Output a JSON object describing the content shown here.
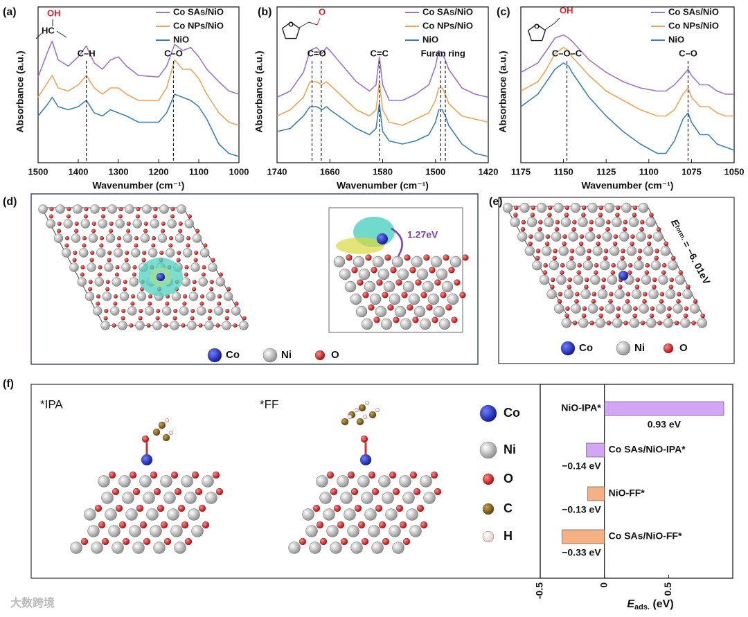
{
  "chart_data": [
    {
      "type": "line",
      "xlabel": "Wavenumber (cm⁻¹)",
      "ylabel": "Absorbance (a.u.)",
      "xlim": [
        1500,
        1000
      ],
      "xticks": [
        1500,
        1400,
        1300,
        1200,
        1100,
        1000
      ],
      "ylim": [
        0,
        1
      ],
      "molecule": [
        "OH",
        "HC"
      ],
      "x": [
        1500,
        1475,
        1465,
        1450,
        1425,
        1400,
        1380,
        1360,
        1340,
        1320,
        1300,
        1280,
        1250,
        1200,
        1180,
        1160,
        1140,
        1120,
        1100,
        1080,
        1050,
        1025,
        1000
      ],
      "series": [
        {
          "name": "Co SAs/NiO",
          "color": "#9b72cf",
          "values": [
            0.55,
            0.72,
            0.78,
            0.66,
            0.62,
            0.68,
            0.75,
            0.64,
            0.6,
            0.66,
            0.68,
            0.62,
            0.56,
            0.55,
            0.62,
            0.76,
            0.72,
            0.74,
            0.68,
            0.6,
            0.52,
            0.46,
            0.44
          ]
        },
        {
          "name": "Co NPs/NiO",
          "color": "#f0a354",
          "values": [
            0.42,
            0.52,
            0.56,
            0.48,
            0.46,
            0.5,
            0.56,
            0.48,
            0.44,
            0.48,
            0.48,
            0.44,
            0.4,
            0.4,
            0.48,
            0.66,
            0.6,
            0.6,
            0.54,
            0.44,
            0.32,
            0.26,
            0.24
          ]
        },
        {
          "name": "NiO",
          "color": "#3b7fb4",
          "values": [
            0.3,
            0.38,
            0.42,
            0.36,
            0.34,
            0.36,
            0.4,
            0.32,
            0.3,
            0.34,
            0.32,
            0.3,
            0.26,
            0.26,
            0.32,
            0.44,
            0.42,
            0.4,
            0.36,
            0.28,
            0.12,
            0.06,
            0.04
          ]
        }
      ],
      "annotations": [
        {
          "label": "C–H",
          "x": [
            1380
          ]
        },
        {
          "label": "C–O",
          "x": [
            1163
          ]
        }
      ]
    },
    {
      "type": "line",
      "xlabel": "Wavenumber (cm⁻¹)",
      "ylabel": "Absorbance (a.u.)",
      "xlim": [
        1740,
        1420
      ],
      "xticks": [
        1740,
        1660,
        1580,
        1500,
        1420
      ],
      "ylim": [
        0,
        1
      ],
      "molecule": [
        "O",
        "O"
      ],
      "x": [
        1740,
        1720,
        1700,
        1690,
        1680,
        1672,
        1665,
        1660,
        1640,
        1620,
        1600,
        1590,
        1585,
        1580,
        1570,
        1550,
        1530,
        1510,
        1500,
        1495,
        1490,
        1485,
        1480,
        1460,
        1440,
        1420
      ],
      "series": [
        {
          "name": "Co SAs/NiO",
          "color": "#9b72cf",
          "values": [
            0.42,
            0.46,
            0.58,
            0.72,
            0.74,
            0.7,
            0.74,
            0.72,
            0.62,
            0.52,
            0.46,
            0.5,
            0.68,
            0.5,
            0.4,
            0.4,
            0.44,
            0.5,
            0.62,
            0.72,
            0.7,
            0.66,
            0.6,
            0.48,
            0.44,
            0.42
          ]
        },
        {
          "name": "Co NPs/NiO",
          "color": "#f0a354",
          "values": [
            0.3,
            0.34,
            0.42,
            0.52,
            0.52,
            0.5,
            0.52,
            0.5,
            0.42,
            0.34,
            0.3,
            0.34,
            0.52,
            0.34,
            0.26,
            0.24,
            0.28,
            0.32,
            0.4,
            0.48,
            0.48,
            0.44,
            0.38,
            0.3,
            0.28,
            0.26
          ]
        },
        {
          "name": "NiO",
          "color": "#3b7fb4",
          "values": [
            0.2,
            0.22,
            0.3,
            0.36,
            0.36,
            0.34,
            0.36,
            0.34,
            0.28,
            0.22,
            0.18,
            0.22,
            0.38,
            0.2,
            0.14,
            0.12,
            0.14,
            0.18,
            0.26,
            0.34,
            0.34,
            0.3,
            0.24,
            0.12,
            0.06,
            0.04
          ]
        }
      ],
      "annotations": [
        {
          "label": "C=O",
          "x": [
            1687,
            1673
          ]
        },
        {
          "label": "C=C",
          "x": [
            1585
          ]
        },
        {
          "label": "Furan ring",
          "x": [
            1492,
            1485
          ]
        }
      ]
    },
    {
      "type": "line",
      "xlabel": "Wavenumber (cm⁻¹)",
      "ylabel": "Absorbance (a.u.)",
      "xlim": [
        1175,
        1050
      ],
      "xticks": [
        1175,
        1150,
        1125,
        1100,
        1075,
        1050
      ],
      "ylim": [
        0,
        1
      ],
      "molecule": [
        "O",
        "OH"
      ],
      "x": [
        1175,
        1165,
        1160,
        1155,
        1150,
        1147,
        1145,
        1140,
        1135,
        1125,
        1115,
        1105,
        1095,
        1090,
        1085,
        1080,
        1077,
        1075,
        1070,
        1065,
        1060,
        1055,
        1050
      ],
      "series": [
        {
          "name": "Co SAs/NiO",
          "color": "#9b72cf",
          "values": [
            0.58,
            0.64,
            0.72,
            0.8,
            0.82,
            0.8,
            0.78,
            0.72,
            0.66,
            0.58,
            0.52,
            0.48,
            0.46,
            0.46,
            0.5,
            0.56,
            0.6,
            0.56,
            0.5,
            0.5,
            0.46,
            0.44,
            0.44
          ]
        },
        {
          "name": "Co NPs/NiO",
          "color": "#f0a354",
          "values": [
            0.46,
            0.52,
            0.6,
            0.7,
            0.74,
            0.72,
            0.68,
            0.62,
            0.56,
            0.46,
            0.4,
            0.34,
            0.3,
            0.3,
            0.34,
            0.44,
            0.48,
            0.42,
            0.36,
            0.36,
            0.32,
            0.3,
            0.3
          ]
        },
        {
          "name": "NiO",
          "color": "#3b7fb4",
          "values": [
            0.36,
            0.44,
            0.52,
            0.6,
            0.64,
            0.62,
            0.58,
            0.5,
            0.42,
            0.3,
            0.2,
            0.12,
            0.06,
            0.06,
            0.14,
            0.28,
            0.32,
            0.26,
            0.18,
            0.18,
            0.12,
            0.1,
            0.08
          ]
        }
      ],
      "annotations": [
        {
          "label": "C–O–C",
          "x": [
            1148
          ]
        },
        {
          "label": "C–O",
          "x": [
            1077
          ]
        }
      ]
    },
    {
      "type": "hbar",
      "xlabel": {
        "main": "E",
        "sub": "ads.",
        "unit": " (eV)"
      },
      "xlim": [
        -0.5,
        1.0
      ],
      "xticks": [
        -0.5,
        0,
        0.5
      ],
      "categories": [
        "NiO-IPA*",
        "Co SAs/NiO-IPA*",
        "NiO-FF*",
        "Co SAs/NiO-FF*"
      ],
      "values": [
        0.93,
        -0.14,
        -0.13,
        -0.33
      ],
      "value_labels": [
        "0.93 eV",
        "−0.14 eV",
        "−0.13 eV",
        "−0.33 eV"
      ],
      "colors": [
        "#d3a6f5",
        "#d3a6f5",
        "#f4b183",
        "#f4b183"
      ]
    }
  ],
  "figure": {
    "panel_labels": [
      "(a)",
      "(b)",
      "(c)",
      "(d)",
      "(e)",
      "(f)"
    ],
    "d": {
      "inset_energy": "1.27eV",
      "legend": [
        "Co",
        "Ni",
        "O"
      ]
    },
    "e": {
      "energy": {
        "main": "E",
        "sub": "form.",
        "rest": " = −6. 01eV"
      },
      "legend": [
        "Co",
        "Ni",
        "O"
      ]
    },
    "f": {
      "structures": [
        "*IPA",
        "*FF"
      ],
      "legend": [
        "Co",
        "Ni",
        "O",
        "C",
        "H"
      ]
    },
    "watermark": "大数跨境"
  }
}
